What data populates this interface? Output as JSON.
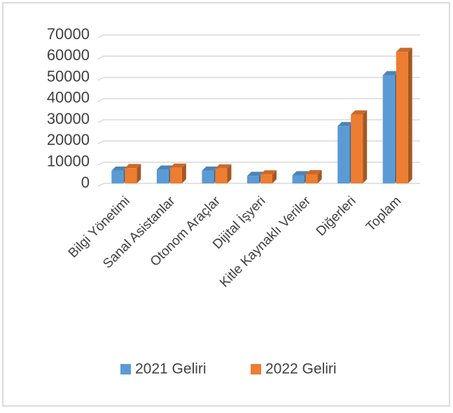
{
  "chart_data": {
    "type": "bar",
    "categories": [
      "Bilgi Yönetimi",
      "Sanal Asistanlar",
      "Otonom Araçlar",
      "Dijital İşyeri",
      "Kitle Kaynaklı Veriler",
      "Diğerleri",
      "Toplam"
    ],
    "series": [
      {
        "name": "2021 Geliri",
        "color": "#5b9bd5",
        "values": [
          6000,
          6500,
          6000,
          3500,
          3800,
          27000,
          51000
        ]
      },
      {
        "name": "2022 Geliri",
        "color": "#ed7d31",
        "values": [
          7200,
          7400,
          7000,
          4200,
          4300,
          32500,
          62000
        ]
      }
    ],
    "ylim": [
      0,
      70000
    ],
    "yticks": [
      0,
      10000,
      20000,
      30000,
      40000,
      50000,
      60000,
      70000
    ],
    "grid": true
  }
}
